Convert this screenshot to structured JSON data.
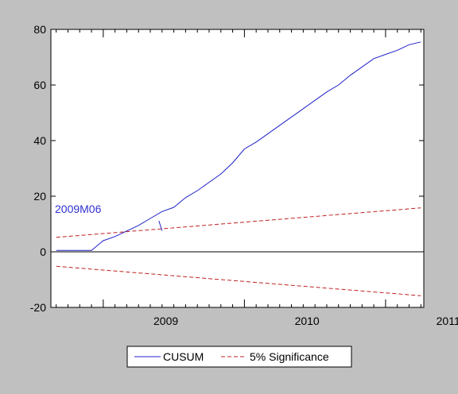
{
  "chart_data": {
    "type": "line",
    "title": "",
    "xlabel": "",
    "ylabel": "",
    "ylim": [
      -20,
      80
    ],
    "yticks": [
      -20,
      0,
      20,
      40,
      60,
      80
    ],
    "x_start": "2008M09",
    "x_end": "2011M04",
    "x_tick_labels": [
      {
        "label": "2009",
        "period": "2009M07"
      },
      {
        "label": "2010",
        "period": "2010M07"
      },
      {
        "label": "2011",
        "period": "2011M07"
      }
    ],
    "series": [
      {
        "name": "CUSUM",
        "color": "#2020c8",
        "style": "solid",
        "x": [
          "2008M09",
          "2008M10",
          "2008M11",
          "2008M12",
          "2009M01",
          "2009M02",
          "2009M03",
          "2009M04",
          "2009M05",
          "2009M06",
          "2009M07",
          "2009M08",
          "2009M09",
          "2009M10",
          "2009M11",
          "2009M12",
          "2010M01",
          "2010M02",
          "2010M03",
          "2010M04",
          "2010M05",
          "2010M06",
          "2010M07",
          "2010M08",
          "2010M09",
          "2010M10",
          "2010M11",
          "2010M12",
          "2011M01",
          "2011M02",
          "2011M03",
          "2011M04"
        ],
        "values": [
          0.5,
          0.5,
          0.5,
          0.5,
          4.0,
          5.5,
          7.5,
          9.5,
          12.0,
          14.5,
          16.0,
          19.5,
          22.0,
          25.0,
          28.0,
          32.0,
          37.0,
          39.5,
          42.5,
          45.5,
          48.5,
          51.5,
          54.5,
          57.5,
          60.0,
          63.5,
          66.5,
          69.5,
          71.0,
          72.5,
          74.5,
          75.5
        ]
      },
      {
        "name": "5% Significance",
        "color": "#c02020",
        "style": "dashed",
        "x": [
          "2008M09",
          "2011M04"
        ],
        "values": [
          5.2,
          15.8
        ],
        "mirror": true
      }
    ],
    "annotation": {
      "text": "2009M06",
      "period": "2009M06",
      "value": 7.0
    },
    "legend": {
      "position": "bottom",
      "entries": [
        "CUSUM",
        "5% Significance"
      ]
    },
    "grid": false
  }
}
